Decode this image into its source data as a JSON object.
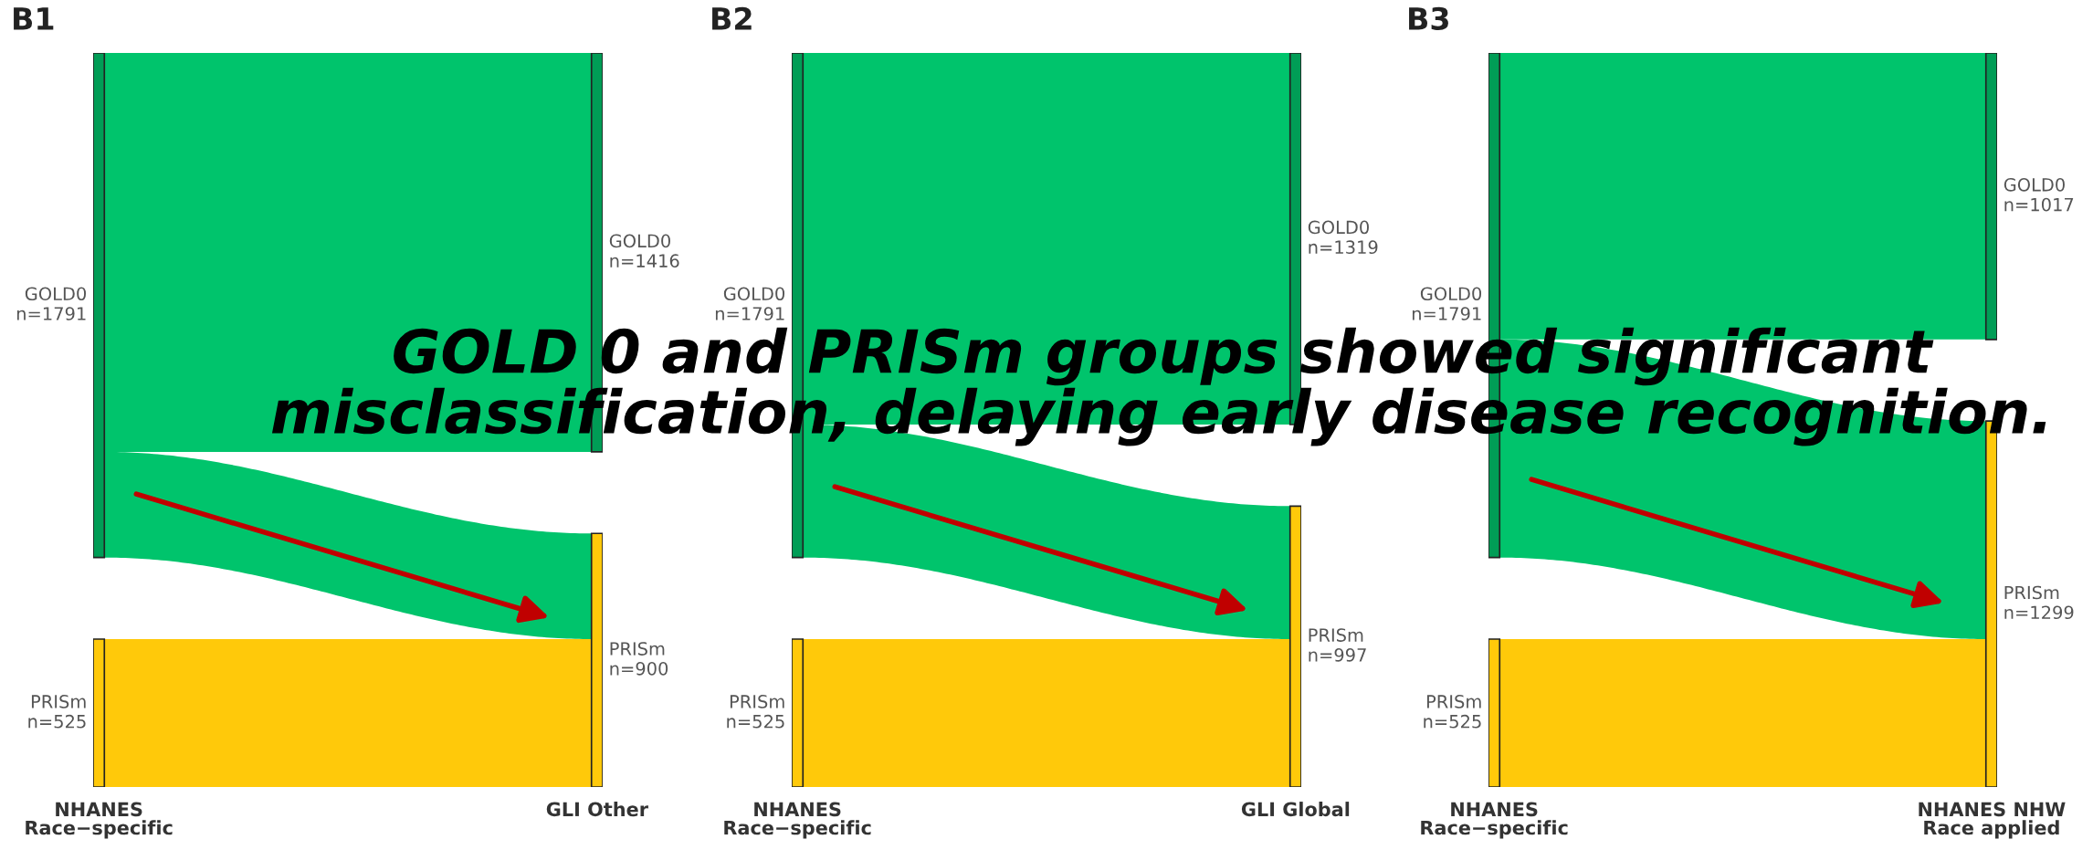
{
  "chart_data": [
    {
      "type": "other",
      "title": "B1",
      "categories": [
        "GOLD0",
        "PRISm"
      ],
      "colors": [
        "#00c46c",
        "#ffc90a"
      ],
      "series": [
        {
          "values": [
            1791,
            525
          ],
          "value_labels": [
            "n=1791",
            "n=525"
          ]
        },
        {
          "values": [
            1416,
            900
          ],
          "value_labels": [
            "n=1416",
            "n=900"
          ]
        }
      ],
      "annotations": [
        "NHANES\nRace−specific",
        "GLI Other",
        "GOLD 0 and PRISm groups showed significant\nmisclassification, delaying early disease recognition."
      ]
    },
    {
      "type": "other",
      "title": "B2",
      "categories": [
        "GOLD0",
        "PRISm"
      ],
      "colors": [
        "#00c46c",
        "#ffc90a"
      ],
      "series": [
        {
          "values": [
            1791,
            525
          ],
          "value_labels": [
            "n=1791",
            "n=525"
          ]
        },
        {
          "values": [
            1319,
            997
          ],
          "value_labels": [
            "n=1319",
            "n=997"
          ]
        }
      ],
      "annotations": [
        "NHANES\nRace−specific",
        "GLI Global"
      ]
    },
    {
      "type": "other",
      "title": "B3",
      "categories": [
        "GOLD0",
        "PRISm"
      ],
      "colors": [
        "#00c46c",
        "#ffc90a"
      ],
      "series": [
        {
          "values": [
            1791,
            525
          ],
          "value_labels": [
            "n=1791",
            "n=525"
          ]
        },
        {
          "values": [
            1017,
            1299
          ],
          "value_labels": [
            "n=1017",
            "n=1299"
          ]
        }
      ],
      "annotations": [
        "NHANES\nRace−specific",
        "NHANES NHW\nRace applied"
      ]
    }
  ]
}
